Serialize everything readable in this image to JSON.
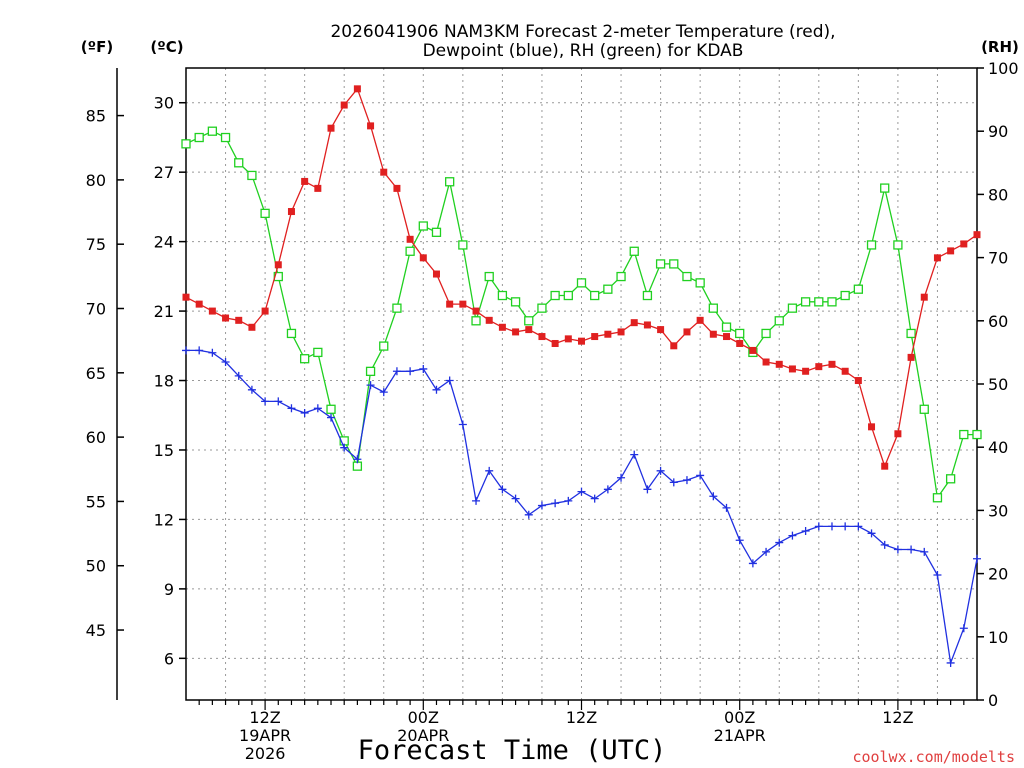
{
  "chart_data": {
    "type": "line",
    "title_line1": "2026041906 NAM3KM Forecast 2-meter Temperature (red),",
    "title_line2": "Dewpoint (blue), RH (green) for KDAB",
    "xlabel": "Forecast Time (UTC)",
    "credit": "coolwx.com/modelts",
    "units": {
      "fahrenheit": "(ºF)",
      "celsius": "(ºC)",
      "rh": "(RH)"
    },
    "grid": true,
    "x_hours_range": [
      0,
      60
    ],
    "x_hours_label": "hours after 2026-04-19 06Z",
    "y_celsius_range": [
      4.2,
      31.5
    ],
    "y_rh_range": [
      0,
      100
    ],
    "celsius_ticks": [
      "6",
      "9",
      "12",
      "15",
      "18",
      "21",
      "24",
      "27",
      "30"
    ],
    "fahrenheit_ticks": [
      "45",
      "50",
      "55",
      "60",
      "65",
      "70",
      "75",
      "80",
      "85"
    ],
    "rh_ticks": [
      "0",
      "10",
      "20",
      "30",
      "40",
      "50",
      "60",
      "70",
      "80",
      "90",
      "100"
    ],
    "x_ticks": [
      {
        "hour": 6,
        "line1": "12Z",
        "line2": "19APR",
        "line3": "2026"
      },
      {
        "hour": 18,
        "line1": "00Z",
        "line2": "20APR",
        "line3": ""
      },
      {
        "hour": 30,
        "line1": "12Z",
        "line2": "",
        "line3": ""
      },
      {
        "hour": 42,
        "line1": "00Z",
        "line2": "21APR",
        "line3": ""
      },
      {
        "hour": 54,
        "line1": "12Z",
        "line2": "",
        "line3": ""
      }
    ],
    "hours": [
      0,
      1,
      2,
      3,
      4,
      5,
      6,
      7,
      8,
      9,
      10,
      11,
      12,
      13,
      14,
      15,
      16,
      17,
      18,
      19,
      20,
      21,
      22,
      23,
      24,
      25,
      26,
      27,
      28,
      29,
      30,
      31,
      32,
      33,
      34,
      35,
      36,
      37,
      38,
      39,
      40,
      41,
      42,
      43,
      44,
      45,
      46,
      47,
      48,
      49,
      50,
      51,
      52,
      53,
      54,
      55,
      56,
      57,
      58,
      59,
      60
    ],
    "series": [
      {
        "name": "Temperature",
        "unit": "°C",
        "color": "#e02020",
        "marker": "filled-square",
        "values": [
          21.6,
          21.3,
          21.0,
          20.7,
          20.6,
          20.3,
          21.0,
          23.0,
          25.3,
          26.6,
          26.3,
          28.9,
          29.9,
          30.6,
          29.0,
          27.0,
          26.3,
          24.1,
          23.3,
          22.6,
          21.3,
          21.3,
          21.0,
          20.6,
          20.3,
          20.1,
          20.2,
          19.9,
          19.6,
          19.8,
          19.7,
          19.9,
          20.0,
          20.1,
          20.5,
          20.4,
          20.2,
          19.5,
          20.1,
          20.6,
          20.0,
          19.9,
          19.6,
          19.3,
          18.8,
          18.7,
          18.5,
          18.4,
          18.6,
          18.7,
          18.4,
          18.0,
          16.0,
          14.3,
          15.7,
          19.0,
          21.6,
          23.3,
          23.6,
          23.9,
          24.3
        ]
      },
      {
        "name": "Dewpoint",
        "unit": "°C",
        "color": "#2030e0",
        "marker": "plus",
        "values": [
          19.3,
          19.3,
          19.2,
          18.8,
          18.2,
          17.6,
          17.1,
          17.1,
          16.8,
          16.6,
          16.8,
          16.4,
          15.1,
          14.6,
          17.8,
          17.5,
          18.4,
          18.4,
          18.5,
          17.6,
          18.0,
          16.1,
          12.8,
          14.1,
          13.3,
          12.9,
          12.2,
          12.6,
          12.7,
          12.8,
          13.2,
          12.9,
          13.3,
          13.8,
          14.8,
          13.3,
          14.1,
          13.6,
          13.7,
          13.9,
          13.0,
          12.5,
          11.1,
          10.1,
          10.6,
          11.0,
          11.3,
          11.5,
          11.7,
          11.7,
          11.7,
          11.7,
          11.4,
          10.9,
          10.7,
          10.7,
          10.6,
          9.6,
          5.8,
          7.3,
          10.3
        ]
      },
      {
        "name": "RH",
        "unit": "%",
        "color": "#20d020",
        "marker": "open-square",
        "values": [
          88,
          89,
          90,
          89,
          85,
          83,
          77,
          67,
          58,
          54,
          55,
          46,
          41,
          37,
          52,
          56,
          62,
          71,
          75,
          74,
          82,
          72,
          60,
          67,
          64,
          63,
          60,
          62,
          64,
          64,
          66,
          64,
          65,
          67,
          71,
          64,
          69,
          69,
          67,
          66,
          62,
          59,
          58,
          55,
          58,
          60,
          62,
          63,
          63,
          63,
          64,
          65,
          72,
          81,
          72,
          58,
          46,
          32,
          35,
          42,
          42
        ]
      }
    ]
  }
}
